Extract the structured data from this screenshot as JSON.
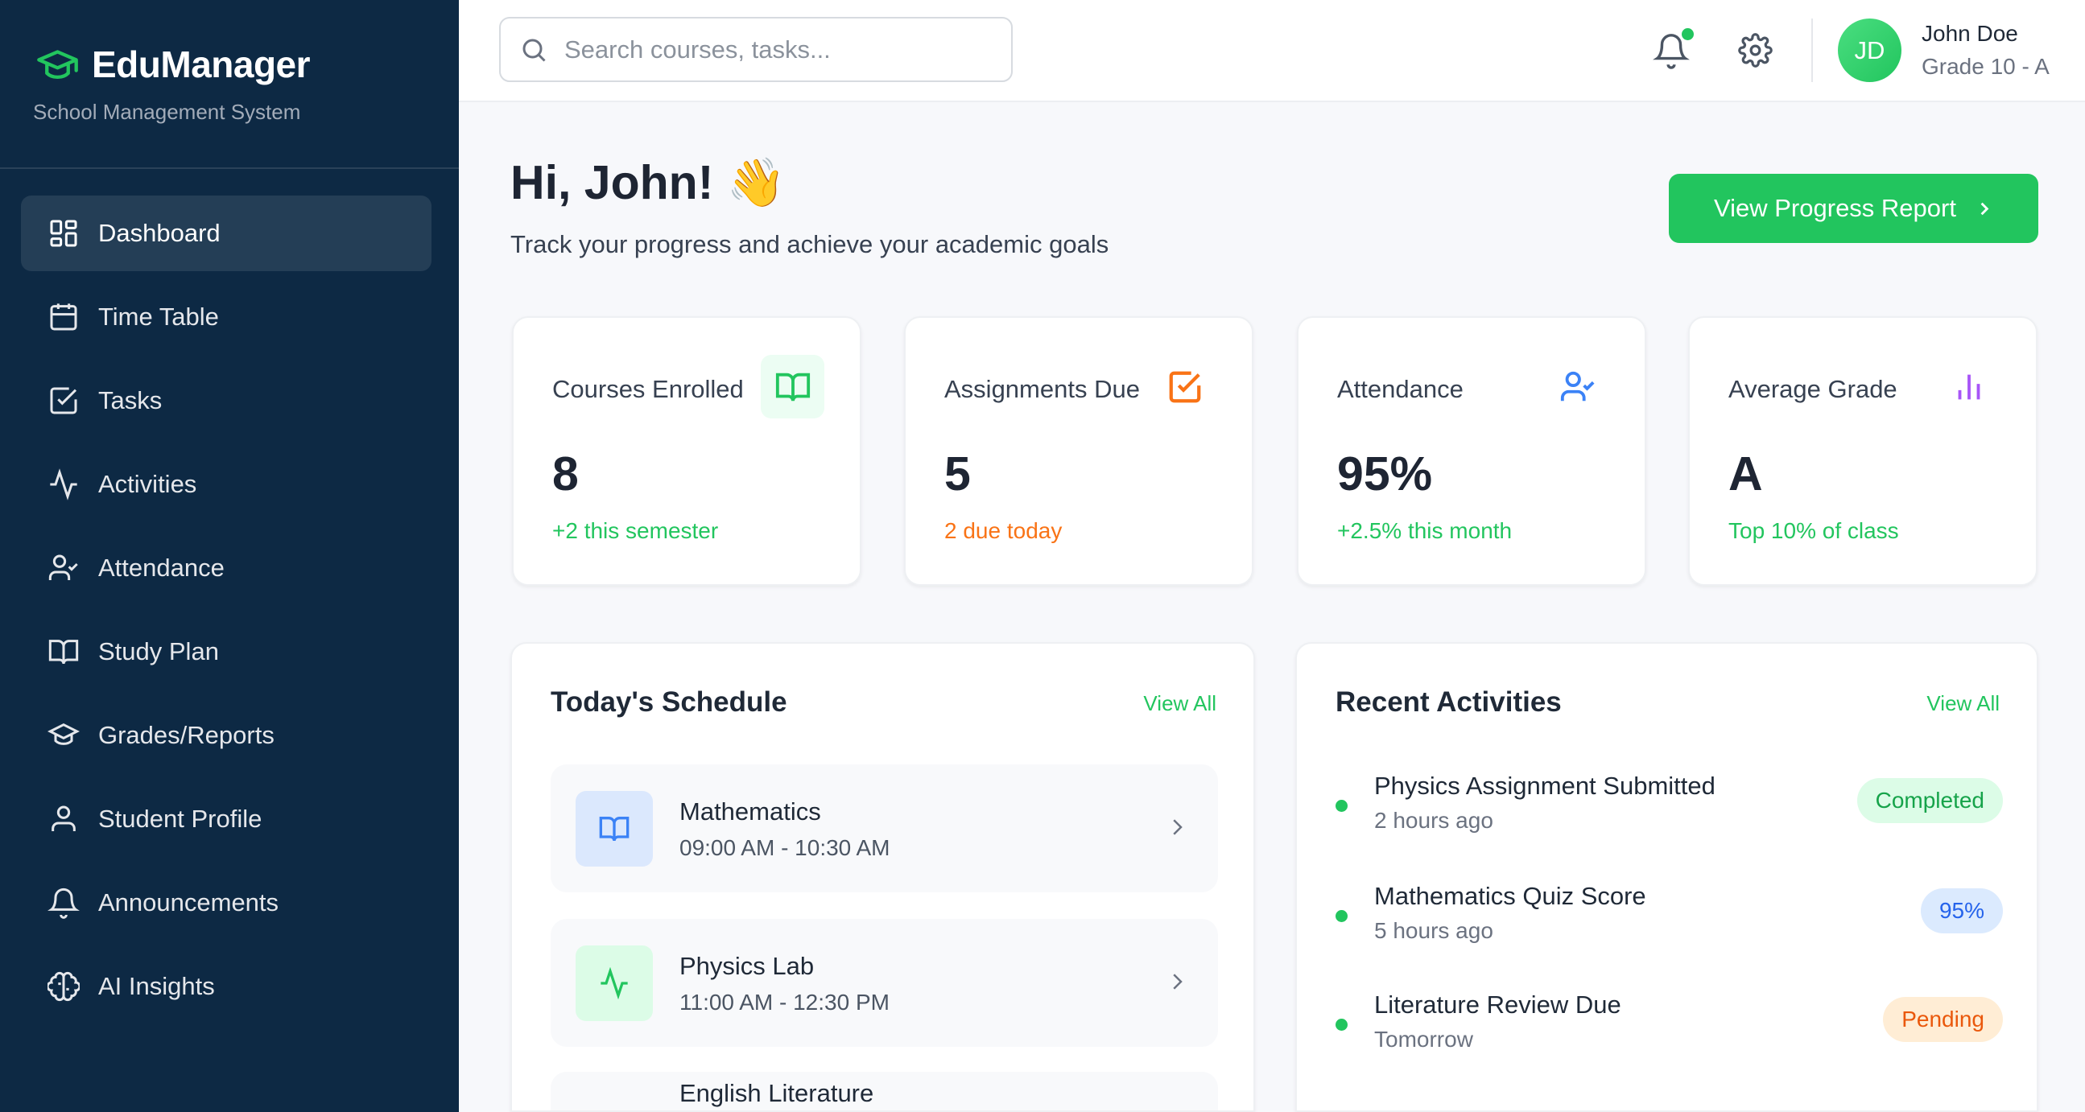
{
  "app": {
    "title": "EduManager",
    "subtitle": "School Management System"
  },
  "sidebar": {
    "items": [
      {
        "label": "Dashboard",
        "icon": "layout-grid-icon",
        "active": true
      },
      {
        "label": "Time Table",
        "icon": "calendar-icon"
      },
      {
        "label": "Tasks",
        "icon": "check-square-icon"
      },
      {
        "label": "Activities",
        "icon": "activity-icon"
      },
      {
        "label": "Attendance",
        "icon": "user-check-icon"
      },
      {
        "label": "Study Plan",
        "icon": "book-open-icon"
      },
      {
        "label": "Grades/Reports",
        "icon": "graduation-cap-icon"
      },
      {
        "label": "Student Profile",
        "icon": "user-icon"
      },
      {
        "label": "Announcements",
        "icon": "bell-icon"
      },
      {
        "label": "AI Insights",
        "icon": "brain-icon"
      }
    ]
  },
  "header": {
    "search_placeholder": "Search courses, tasks...",
    "user": {
      "initials": "JD",
      "name": "John Doe",
      "grade": "Grade 10 - A"
    }
  },
  "greeting": {
    "title": "Hi, John!",
    "emoji": "👋",
    "subtitle": "Track your progress and achieve your academic goals",
    "button": "View Progress Report"
  },
  "stats": [
    {
      "label": "Courses Enrolled",
      "value": "8",
      "sub": "+2 this semester",
      "color": "#22c55e"
    },
    {
      "label": "Assignments Due",
      "value": "5",
      "sub": "2 due today",
      "color": "#f97316"
    },
    {
      "label": "Attendance",
      "value": "95%",
      "sub": "+2.5% this month",
      "color": "#22c55e"
    },
    {
      "label": "Average Grade",
      "value": "A",
      "sub": "Top 10% of class",
      "color": "#22c55e"
    }
  ],
  "schedule": {
    "title": "Today's Schedule",
    "view_all": "View All",
    "items": [
      {
        "title": "Mathematics",
        "time": "09:00 AM - 10:30 AM"
      },
      {
        "title": "Physics Lab",
        "time": "11:00 AM - 12:30 PM"
      },
      {
        "title": "English Literature",
        "time": ""
      }
    ]
  },
  "activities": {
    "title": "Recent Activities",
    "view_all": "View All",
    "items": [
      {
        "title": "Physics Assignment Submitted",
        "time": "2 hours ago",
        "badge": "Completed"
      },
      {
        "title": "Mathematics Quiz Score",
        "time": "5 hours ago",
        "badge": "95%"
      },
      {
        "title": "Literature Review Due",
        "time": "Tomorrow",
        "badge": "Pending"
      }
    ]
  }
}
